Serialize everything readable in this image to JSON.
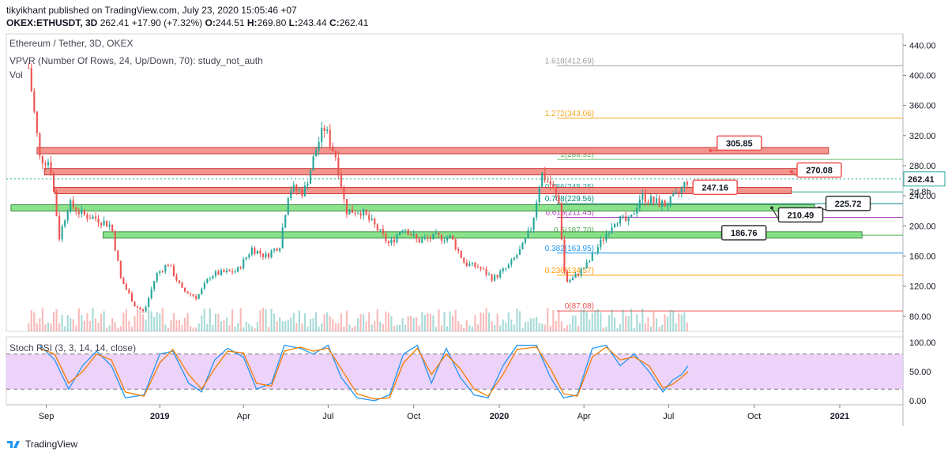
{
  "header": {
    "line1": "tikyikhant published on TradingView.com, July 23, 2020 15:05:46 +07",
    "symbol": "OKEX:ETHUSDT, 3D",
    "last": "262.41",
    "change": "+17.90 (+7.32%)",
    "o_label": "O:",
    "o": "244.51",
    "h_label": "H:",
    "h": "269.80",
    "l_label": "L:",
    "l": "243.44",
    "c_label": "C:",
    "c": "262.41"
  },
  "legends": {
    "title": "Ethereum / Tether, 3D, OKEX",
    "vpvr": "VPVR (Number Of Rows, 24, Up/Down, 70): study_not_auth",
    "vol": "Vol",
    "stoch": "Stoch RSI (3, 3, 14, 14, close)"
  },
  "footer": {
    "brand": "TradingView"
  },
  "colors": {
    "up": "#26a69a",
    "down": "#ef5350",
    "resistance": "#f28b82",
    "support": "#7ee07e",
    "stoch_bg": "#e9c8f7"
  },
  "chart_data": {
    "type": "candlestick",
    "y_ticks": [
      "440.00",
      "400.00",
      "360.00",
      "320.00",
      "280.00",
      "240.00",
      "200.00",
      "160.00",
      "120.00",
      "80.00"
    ],
    "y_values": [
      440,
      400,
      360,
      320,
      280,
      240,
      200,
      160,
      120,
      80
    ],
    "ylim": [
      60,
      455
    ],
    "x_ticks": [
      "Sep",
      "2019",
      "Apr",
      "Jul",
      "Oct",
      "2020",
      "Apr",
      "Jul",
      "Oct",
      "2021"
    ],
    "x_dates": [
      "2018-09-01",
      "2019-01-01",
      "2019-04-01",
      "2019-07-01",
      "2019-10-01",
      "2020-01-01",
      "2020-04-01",
      "2020-07-01",
      "2020-10-01",
      "2021-01-01"
    ],
    "xlim": [
      "2018-07-20",
      "2021-03-10"
    ],
    "last_price": "262.41",
    "countdown": "2d 8h",
    "close_path": [
      [
        "2018-08-13",
        410
      ],
      [
        "2018-08-25",
        290
      ],
      [
        "2018-09-05",
        285
      ],
      [
        "2018-09-15",
        185
      ],
      [
        "2018-09-25",
        230
      ],
      [
        "2018-10-10",
        215
      ],
      [
        "2018-10-25",
        210
      ],
      [
        "2018-11-10",
        200
      ],
      [
        "2018-11-20",
        130
      ],
      [
        "2018-12-05",
        95
      ],
      [
        "2018-12-15",
        85
      ],
      [
        "2018-12-28",
        135
      ],
      [
        "2019-01-10",
        150
      ],
      [
        "2019-01-25",
        115
      ],
      [
        "2019-02-10",
        105
      ],
      [
        "2019-02-25",
        135
      ],
      [
        "2019-03-10",
        138
      ],
      [
        "2019-03-25",
        140
      ],
      [
        "2019-04-10",
        170
      ],
      [
        "2019-04-25",
        160
      ],
      [
        "2019-05-10",
        175
      ],
      [
        "2019-05-20",
        250
      ],
      [
        "2019-06-05",
        245
      ],
      [
        "2019-06-20",
        310
      ],
      [
        "2019-06-27",
        330
      ],
      [
        "2019-07-10",
        290
      ],
      [
        "2019-07-20",
        220
      ],
      [
        "2019-08-05",
        220
      ],
      [
        "2019-08-20",
        200
      ],
      [
        "2019-09-05",
        175
      ],
      [
        "2019-09-20",
        200
      ],
      [
        "2019-10-05",
        180
      ],
      [
        "2019-10-25",
        185
      ],
      [
        "2019-11-10",
        185
      ],
      [
        "2019-11-25",
        150
      ],
      [
        "2019-12-10",
        145
      ],
      [
        "2019-12-25",
        130
      ],
      [
        "2020-01-10",
        145
      ],
      [
        "2020-01-25",
        170
      ],
      [
        "2020-02-05",
        200
      ],
      [
        "2020-02-15",
        270
      ],
      [
        "2020-02-25",
        255
      ],
      [
        "2020-03-05",
        230
      ],
      [
        "2020-03-12",
        125
      ],
      [
        "2020-03-20",
        130
      ],
      [
        "2020-04-05",
        150
      ],
      [
        "2020-04-20",
        180
      ],
      [
        "2020-05-05",
        210
      ],
      [
        "2020-05-20",
        205
      ],
      [
        "2020-06-01",
        240
      ],
      [
        "2020-06-15",
        232
      ],
      [
        "2020-06-28",
        228
      ],
      [
        "2020-07-10",
        240
      ],
      [
        "2020-07-22",
        262
      ]
    ],
    "zones": [
      {
        "type": "resistance",
        "y": 300,
        "x_start": "2018-08-22",
        "x_end": "2020-12-20"
      },
      {
        "type": "resistance",
        "y": 272,
        "x_start": "2018-08-30",
        "x_end": "2020-12-20"
      },
      {
        "type": "resistance",
        "y": 247,
        "x_start": "2018-09-10",
        "x_end": "2020-11-10"
      },
      {
        "type": "support",
        "y": 224,
        "x_start": "2018-07-25",
        "x_end": "2020-12-05"
      },
      {
        "type": "support",
        "y": 188,
        "x_start": "2018-11-01",
        "x_end": "2021-01-25"
      }
    ],
    "fib_levels": [
      {
        "label": "1.618(412.69)",
        "value": 412.69,
        "color": "#9e9e9e"
      },
      {
        "label": "1.272(343.06)",
        "value": 343.06,
        "color": "#f5a623"
      },
      {
        "label": "1(288.32)",
        "value": 288.32,
        "color": "#66bb6a"
      },
      {
        "label": "0.786(245.25)",
        "value": 245.25,
        "color": "#26a69a"
      },
      {
        "label": "0.708(229.56)",
        "value": 229.56,
        "color": "#00897b"
      },
      {
        "label": "0.618(211.45)",
        "value": 211.45,
        "color": "#ab47bc"
      },
      {
        "label": "0.5(187.70)",
        "value": 187.7,
        "color": "#4caf50"
      },
      {
        "label": "0.382(163.95)",
        "value": 163.95,
        "color": "#2196f3"
      },
      {
        "label": "0.236(134.57)",
        "value": 134.57,
        "color": "#ff9800"
      },
      {
        "label": "0(87.08)",
        "value": 87.08,
        "color": "#ef5350"
      }
    ],
    "callouts": [
      {
        "label": "305.85",
        "value": 305.85,
        "color": "#ef5350",
        "at": "2020-09-15",
        "tip_date": "2020-08-15",
        "tip_y": 300
      },
      {
        "label": "270.08",
        "value": 270.08,
        "color": "#ef5350",
        "at": "2020-12-10",
        "tip_date": "2020-11-10",
        "tip_y": 272
      },
      {
        "label": "247.16",
        "value": 247.16,
        "color": "#ef5350",
        "at": "2020-08-20",
        "tip_date": "2020-07-28",
        "tip_y": 247
      },
      {
        "label": "225.72",
        "value": 225.72,
        "color": "#333333",
        "at": "2021-01-10",
        "tip_date": "2020-12-10",
        "tip_y": 224
      },
      {
        "label": "210.49",
        "value": 210.49,
        "color": "#333333",
        "at": "2020-11-20",
        "tip_date": "2020-10-20",
        "tip_y": 224
      },
      {
        "label": "186.76",
        "value": 186.76,
        "color": "#333333",
        "at": "2020-09-20",
        "tip_date": "2020-08-28",
        "tip_y": 188
      }
    ],
    "stoch": {
      "y_ticks": [
        "100.00",
        "50.00",
        "0.00"
      ],
      "y_values": [
        100,
        50,
        0
      ],
      "bands": [
        80,
        20
      ],
      "k": [
        [
          "2018-08-25",
          95
        ],
        [
          "2018-09-10",
          70
        ],
        [
          "2018-09-25",
          20
        ],
        [
          "2018-10-10",
          60
        ],
        [
          "2018-10-25",
          85
        ],
        [
          "2018-11-10",
          60
        ],
        [
          "2018-11-25",
          5
        ],
        [
          "2018-12-15",
          10
        ],
        [
          "2019-01-01",
          80
        ],
        [
          "2019-01-15",
          85
        ],
        [
          "2019-02-01",
          30
        ],
        [
          "2019-02-15",
          15
        ],
        [
          "2019-03-01",
          70
        ],
        [
          "2019-03-15",
          90
        ],
        [
          "2019-04-01",
          75
        ],
        [
          "2019-04-15",
          20
        ],
        [
          "2019-05-01",
          30
        ],
        [
          "2019-05-15",
          95
        ],
        [
          "2019-06-01",
          90
        ],
        [
          "2019-06-15",
          80
        ],
        [
          "2019-07-01",
          95
        ],
        [
          "2019-07-15",
          40
        ],
        [
          "2019-08-01",
          5
        ],
        [
          "2019-08-20",
          0
        ],
        [
          "2019-09-05",
          10
        ],
        [
          "2019-09-20",
          80
        ],
        [
          "2019-10-05",
          95
        ],
        [
          "2019-10-20",
          30
        ],
        [
          "2019-11-05",
          90
        ],
        [
          "2019-11-20",
          40
        ],
        [
          "2019-12-05",
          10
        ],
        [
          "2019-12-20",
          5
        ],
        [
          "2020-01-05",
          60
        ],
        [
          "2020-01-20",
          95
        ],
        [
          "2020-02-10",
          95
        ],
        [
          "2020-02-25",
          40
        ],
        [
          "2020-03-10",
          5
        ],
        [
          "2020-03-25",
          10
        ],
        [
          "2020-04-10",
          90
        ],
        [
          "2020-04-25",
          95
        ],
        [
          "2020-05-10",
          60
        ],
        [
          "2020-05-25",
          80
        ],
        [
          "2020-06-10",
          50
        ],
        [
          "2020-06-25",
          15
        ],
        [
          "2020-07-05",
          35
        ],
        [
          "2020-07-15",
          45
        ],
        [
          "2020-07-22",
          60
        ]
      ],
      "d": [
        [
          "2018-08-25",
          90
        ],
        [
          "2018-09-10",
          80
        ],
        [
          "2018-09-25",
          30
        ],
        [
          "2018-10-10",
          50
        ],
        [
          "2018-10-25",
          80
        ],
        [
          "2018-11-10",
          70
        ],
        [
          "2018-11-25",
          15
        ],
        [
          "2018-12-15",
          8
        ],
        [
          "2019-01-01",
          65
        ],
        [
          "2019-01-15",
          88
        ],
        [
          "2019-02-01",
          45
        ],
        [
          "2019-02-15",
          20
        ],
        [
          "2019-03-01",
          55
        ],
        [
          "2019-03-15",
          85
        ],
        [
          "2019-04-01",
          82
        ],
        [
          "2019-04-15",
          30
        ],
        [
          "2019-05-01",
          25
        ],
        [
          "2019-05-15",
          85
        ],
        [
          "2019-06-01",
          92
        ],
        [
          "2019-06-15",
          85
        ],
        [
          "2019-07-01",
          90
        ],
        [
          "2019-07-15",
          55
        ],
        [
          "2019-08-01",
          12
        ],
        [
          "2019-08-20",
          3
        ],
        [
          "2019-09-05",
          5
        ],
        [
          "2019-09-20",
          65
        ],
        [
          "2019-10-05",
          90
        ],
        [
          "2019-10-20",
          45
        ],
        [
          "2019-11-05",
          80
        ],
        [
          "2019-11-20",
          55
        ],
        [
          "2019-12-05",
          20
        ],
        [
          "2019-12-20",
          8
        ],
        [
          "2020-01-05",
          45
        ],
        [
          "2020-01-20",
          88
        ],
        [
          "2020-02-10",
          92
        ],
        [
          "2020-02-25",
          55
        ],
        [
          "2020-03-10",
          12
        ],
        [
          "2020-03-25",
          8
        ],
        [
          "2020-04-10",
          75
        ],
        [
          "2020-04-25",
          92
        ],
        [
          "2020-05-10",
          70
        ],
        [
          "2020-05-25",
          75
        ],
        [
          "2020-06-10",
          60
        ],
        [
          "2020-06-25",
          22
        ],
        [
          "2020-07-05",
          28
        ],
        [
          "2020-07-15",
          40
        ],
        [
          "2020-07-22",
          50
        ]
      ]
    }
  }
}
